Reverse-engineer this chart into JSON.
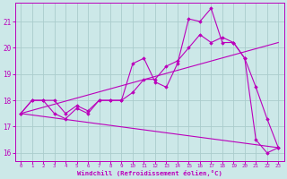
{
  "bg_color": "#cce8e8",
  "line_color": "#bb00bb",
  "grid_color": "#aacccc",
  "xlabel": "Windchill (Refroidissement éolien,°C)",
  "tick_color": "#bb00bb",
  "xlim": [
    -0.5,
    23.5
  ],
  "ylim": [
    15.7,
    21.7
  ],
  "yticks": [
    16,
    17,
    18,
    19,
    20,
    21
  ],
  "xticks": [
    0,
    1,
    2,
    3,
    4,
    5,
    6,
    7,
    8,
    9,
    10,
    11,
    12,
    13,
    14,
    15,
    16,
    17,
    18,
    19,
    20,
    21,
    22,
    23
  ],
  "line1_x": [
    0,
    1,
    2,
    3,
    4,
    5,
    6,
    7,
    8,
    9,
    10,
    11,
    12,
    13,
    14,
    15,
    16,
    17,
    18,
    19,
    20,
    21,
    22,
    23
  ],
  "line1_y": [
    17.5,
    18.0,
    18.0,
    18.0,
    17.5,
    17.8,
    17.6,
    18.0,
    18.0,
    18.0,
    19.4,
    19.6,
    18.7,
    18.5,
    19.4,
    21.1,
    21.0,
    21.5,
    20.2,
    20.2,
    19.6,
    18.5,
    17.3,
    16.2
  ],
  "line2_x": [
    0,
    1,
    2,
    3,
    4,
    5,
    6,
    7,
    8,
    9,
    10,
    11,
    12,
    13,
    14,
    15,
    16,
    17,
    18,
    19,
    20,
    21,
    22,
    23
  ],
  "line2_y": [
    17.5,
    18.0,
    18.0,
    17.5,
    17.3,
    17.7,
    17.5,
    18.0,
    18.0,
    18.0,
    18.3,
    18.8,
    18.8,
    19.3,
    19.5,
    20.0,
    20.5,
    20.2,
    20.4,
    20.2,
    19.6,
    16.5,
    16.0,
    16.2
  ],
  "line3_x": [
    0,
    23
  ],
  "line3_y": [
    17.5,
    20.2
  ],
  "line4_x": [
    0,
    23
  ],
  "line4_y": [
    17.5,
    16.2
  ]
}
